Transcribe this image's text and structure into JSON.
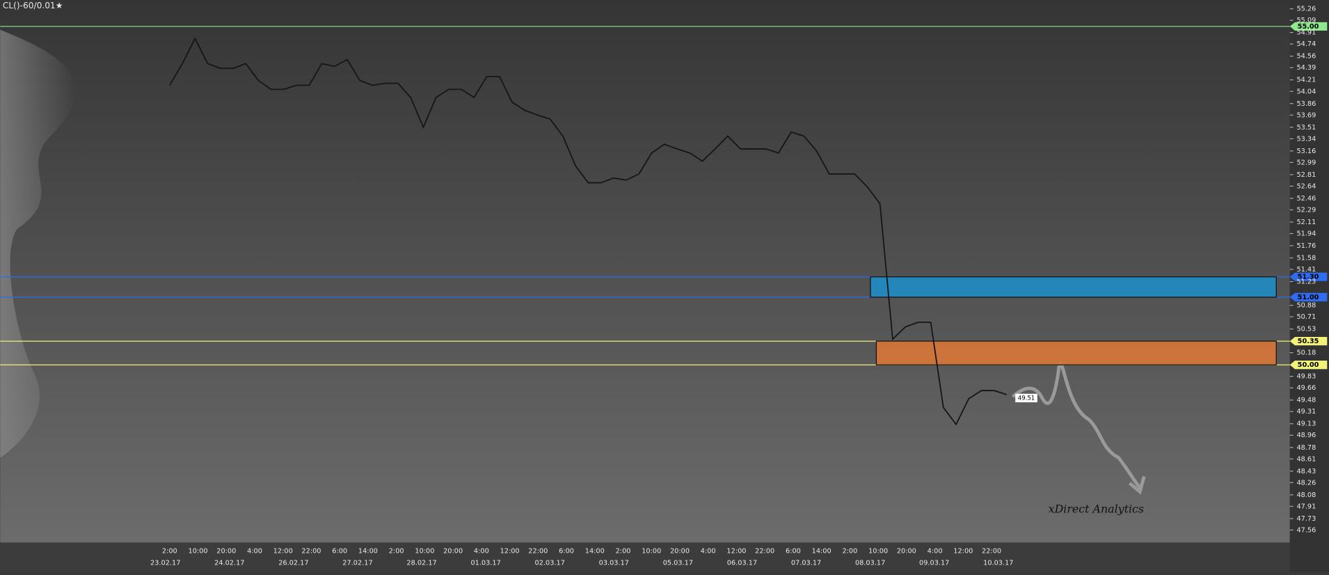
{
  "chart_data": {
    "type": "line",
    "title": "CL()-60/0.01★",
    "annotation": "xDirect Analytics",
    "last_price": 49.51,
    "time_labels": [
      "2:00",
      "10:00",
      "20:00",
      "4:00",
      "12:00",
      "22:00",
      "6:00",
      "14:00",
      "2:00",
      "10:00",
      "20:00",
      "4:00",
      "12:00",
      "22:00",
      "6:00",
      "14:00",
      "2:00",
      "10:00",
      "20:00",
      "4:00",
      "12:00",
      "22:00",
      "6:00",
      "14:00",
      "2:00",
      "10:00",
      "20:00",
      "4:00",
      "12:00",
      "22:00"
    ],
    "date_labels": [
      "23.02.17",
      "24.02.17",
      "26.02.17",
      "27.02.17",
      "28.02.17",
      "01.03.17",
      "02.03.17",
      "03.03.17",
      "05.03.17",
      "06.03.17",
      "07.03.17",
      "08.03.17",
      "09.03.17",
      "10.03.17"
    ],
    "series": [
      {
        "name": "CL",
        "color": "#161616",
        "values": [
          54.13,
          54.45,
          54.82,
          54.45,
          54.38,
          54.38,
          54.45,
          54.2,
          54.07,
          54.07,
          54.13,
          54.13,
          54.45,
          54.41,
          54.51,
          54.2,
          54.13,
          54.16,
          54.16,
          53.95,
          53.51,
          53.95,
          54.07,
          54.07,
          53.95,
          54.26,
          54.26,
          53.88,
          53.76,
          53.69,
          53.63,
          53.38,
          52.94,
          52.69,
          52.69,
          52.76,
          52.73,
          52.82,
          53.13,
          53.26,
          53.19,
          53.13,
          53.01,
          53.19,
          53.38,
          53.19,
          53.19,
          53.19,
          53.13,
          53.44,
          53.38,
          53.16,
          52.82,
          52.82,
          52.82,
          52.63,
          52.38,
          50.38,
          50.56,
          50.63,
          50.63,
          49.37,
          49.12,
          49.5,
          49.62,
          49.62,
          49.56
        ]
      }
    ],
    "ylim": [
      47.4,
      55.39
    ],
    "yticks": [
      55.26,
      55.09,
      54.91,
      54.74,
      54.56,
      54.39,
      54.21,
      54.04,
      53.86,
      53.69,
      53.51,
      53.34,
      53.16,
      52.99,
      52.81,
      52.64,
      52.46,
      52.29,
      52.11,
      51.94,
      51.76,
      51.58,
      51.41,
      51.23,
      50.88,
      50.71,
      50.53,
      50.18,
      49.83,
      49.66,
      49.48,
      49.31,
      49.13,
      48.96,
      48.78,
      48.61,
      48.43,
      48.26,
      48.08,
      47.91,
      47.73,
      47.56
    ],
    "levels": [
      {
        "value": 55,
        "label": "55.00",
        "color": "#8ee88e"
      },
      {
        "value": 51.3,
        "label": "51.30",
        "color": "#2f6cf0"
      },
      {
        "value": 51,
        "label": "51.00",
        "color": "#2f6cf0"
      },
      {
        "value": 50.35,
        "label": "50.35",
        "color": "#f2f27a"
      },
      {
        "value": 50,
        "label": "50.00",
        "color": "#f2f27a"
      }
    ],
    "zones": [
      {
        "from": 51,
        "to": 51.3,
        "color": "#1f8cc4"
      },
      {
        "from": 50,
        "to": 50.35,
        "color": "#d9773a"
      }
    ]
  }
}
